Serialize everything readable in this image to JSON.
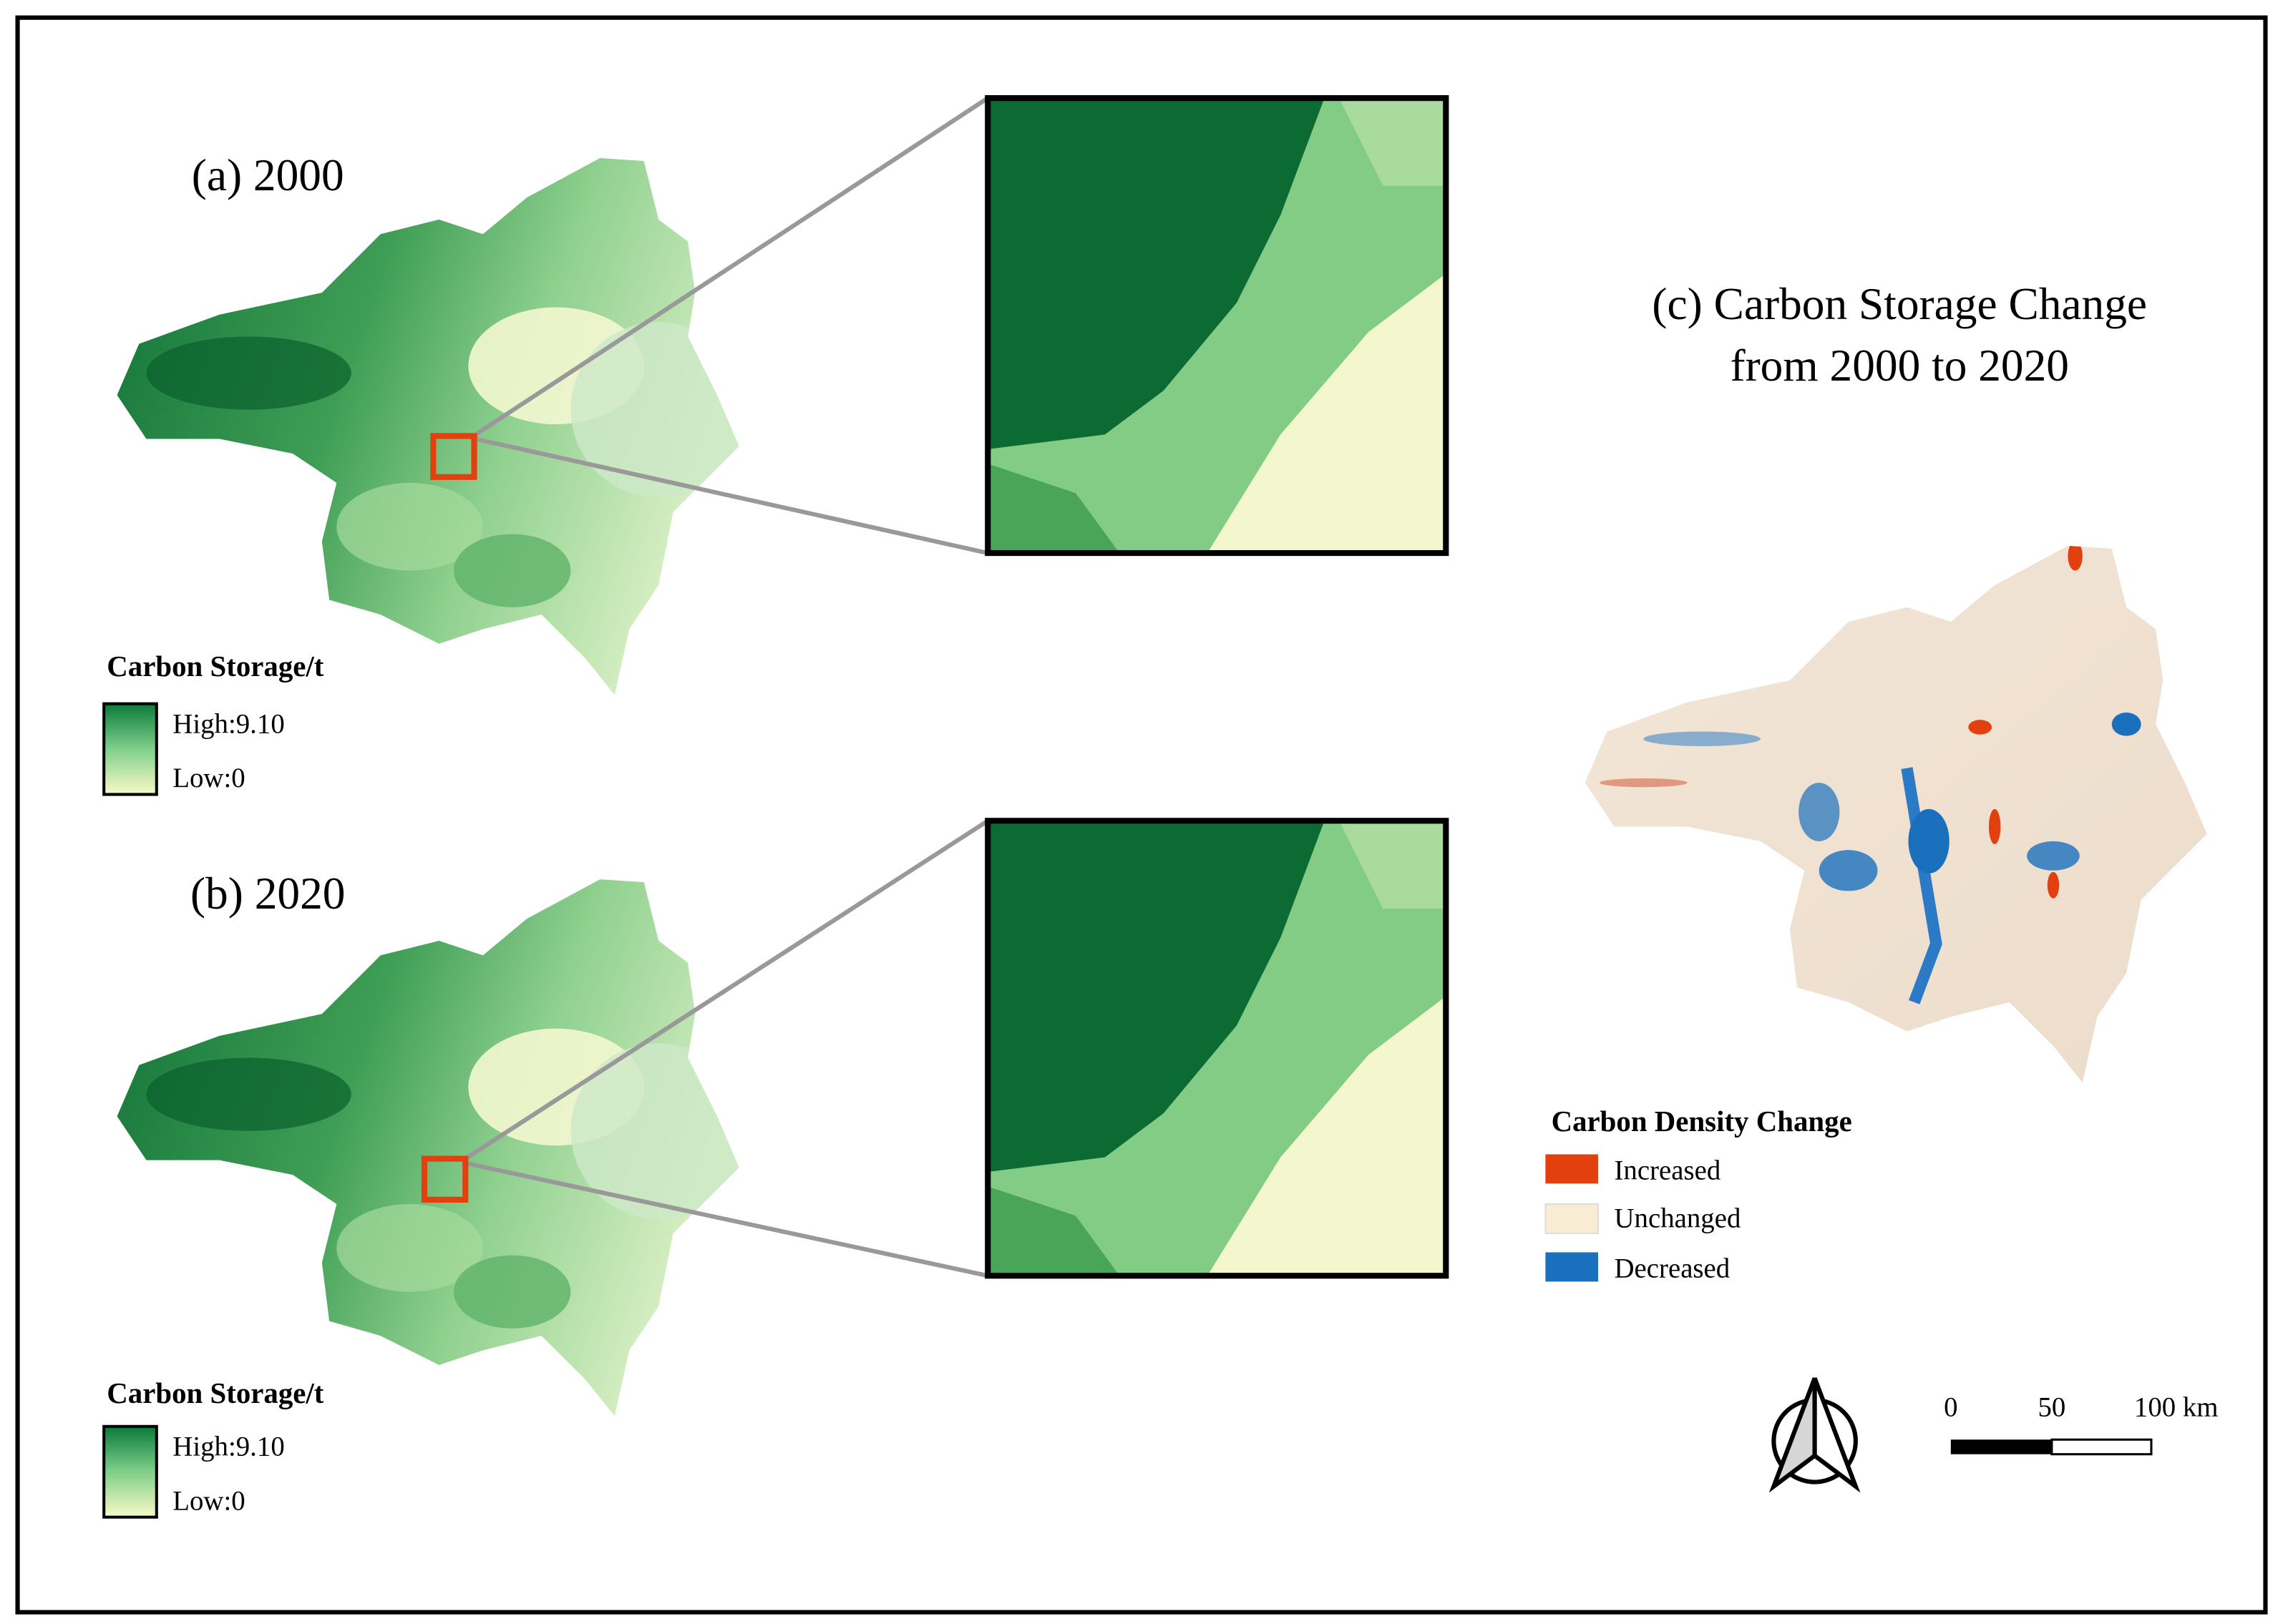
{
  "panels": [
    {
      "title": "(a) 2000",
      "legend": {
        "title": "Carbon Storage/t",
        "high": "High:9.10",
        "low": "Low:0"
      }
    },
    {
      "title": "(b) 2020",
      "legend": {
        "title": "Carbon Storage/t",
        "high": "High:9.10",
        "low": "Low:0"
      }
    }
  ],
  "change": {
    "title": [
      "(c) Carbon Storage Change",
      "from 2000 to 2020"
    ],
    "legend": {
      "title": "Carbon Density Change",
      "items": [
        "Increased",
        "Unchanged",
        "Decreased"
      ]
    }
  },
  "scale_bar": {
    "labels": [
      "0",
      "50",
      "100 km"
    ]
  }
}
